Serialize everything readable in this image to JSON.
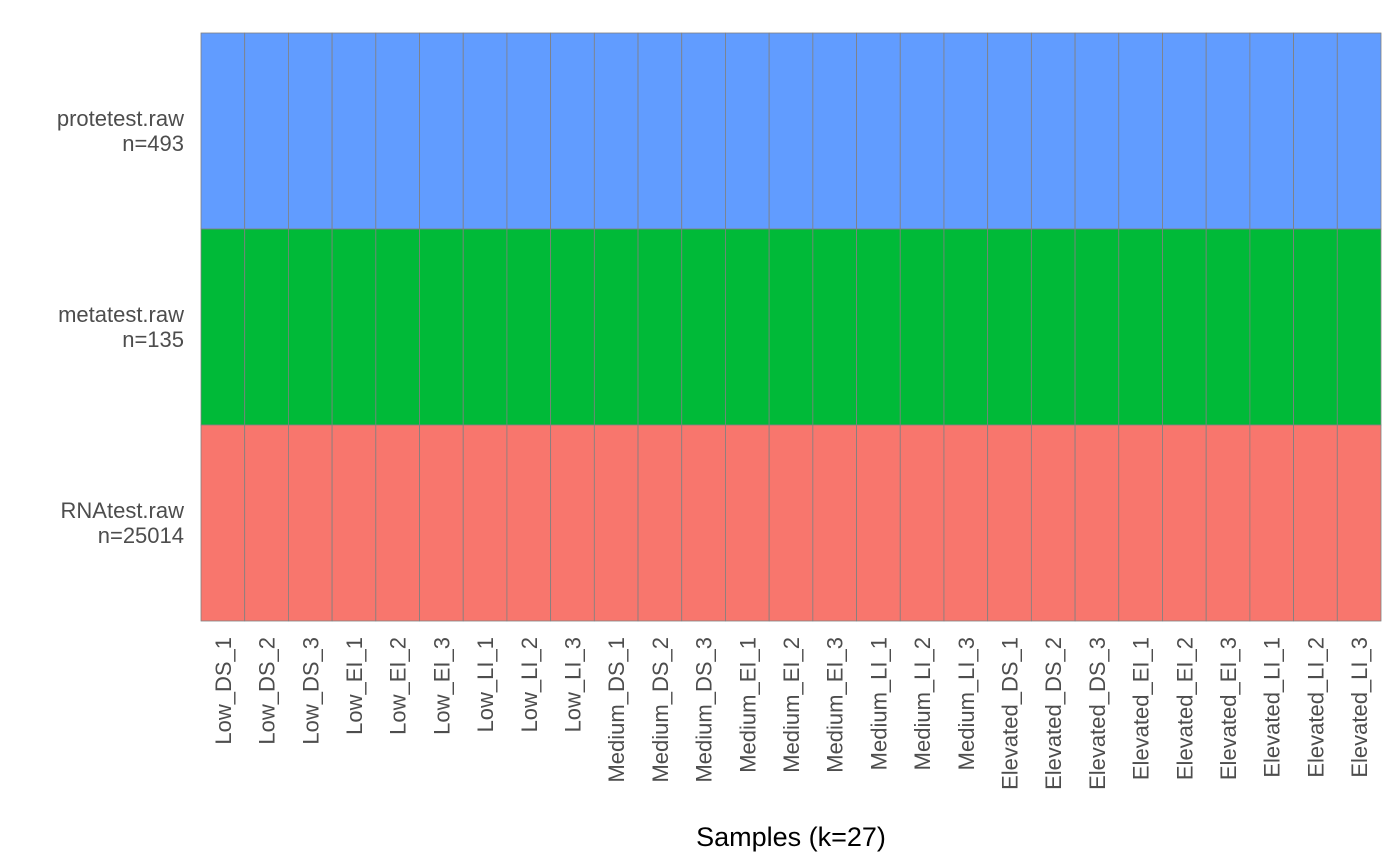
{
  "chart_data": {
    "type": "heatmap",
    "xlabel": "Samples (k=27)",
    "samples": [
      "Low_DS_1",
      "Low_DS_2",
      "Low_DS_3",
      "Low_EI_1",
      "Low_EI_2",
      "Low_EI_3",
      "Low_LI_1",
      "Low_LI_2",
      "Low_LI_3",
      "Medium_DS_1",
      "Medium_DS_2",
      "Medium_DS_3",
      "Medium_EI_1",
      "Medium_EI_2",
      "Medium_EI_3",
      "Medium_LI_1",
      "Medium_LI_2",
      "Medium_LI_3",
      "Elevated_DS_1",
      "Elevated_DS_2",
      "Elevated_DS_3",
      "Elevated_EI_1",
      "Elevated_EI_2",
      "Elevated_EI_3",
      "Elevated_LI_1",
      "Elevated_LI_2",
      "Elevated_LI_3"
    ],
    "rows": [
      {
        "name": "protetest.raw",
        "n_label": "n=493",
        "color": "#619CFF"
      },
      {
        "name": "metatest.raw",
        "n_label": "n=135",
        "color": "#00BA38"
      },
      {
        "name": "RNAtest.raw",
        "n_label": "n=25014",
        "color": "#F8766D"
      }
    ],
    "cell_border_color": "#808080",
    "grid": false,
    "legend": "none"
  }
}
